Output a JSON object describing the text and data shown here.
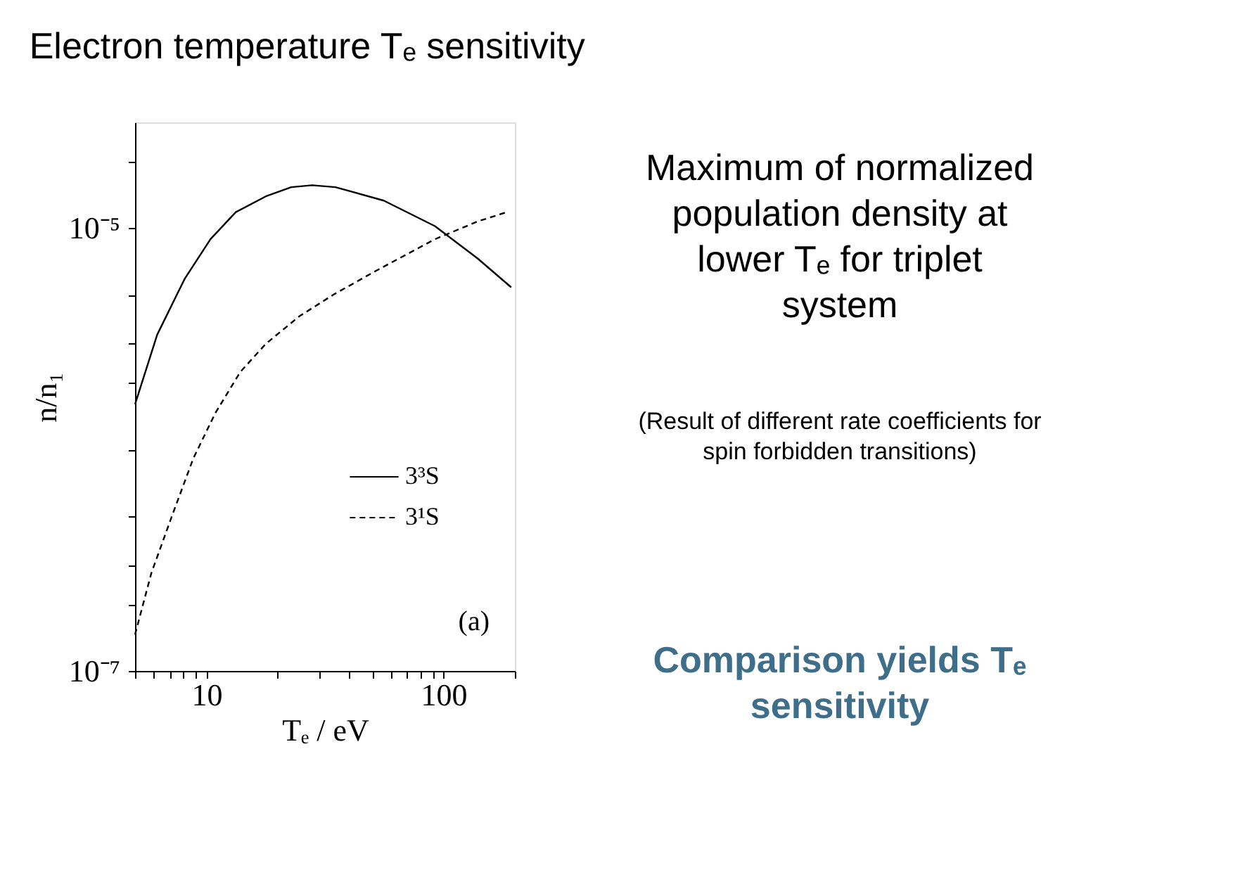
{
  "chart_data": {
    "type": "line",
    "title": "Electron temperature Tₑ sensitivity",
    "xlabel": "Tₑ / eV",
    "ylabel": "n/n₁",
    "log": "xy",
    "xlim": [
      5,
      200
    ],
    "ylim": [
      1e-07,
      3e-05
    ],
    "xticks": [
      {
        "value": 5,
        "label": null
      },
      {
        "value": 6,
        "label": null
      },
      {
        "value": 7,
        "label": null
      },
      {
        "value": 8,
        "label": null
      },
      {
        "value": 9,
        "label": null
      },
      {
        "value": 10,
        "label": "10"
      },
      {
        "value": 20,
        "label": null
      },
      {
        "value": 30,
        "label": null
      },
      {
        "value": 40,
        "label": null
      },
      {
        "value": 50,
        "label": null
      },
      {
        "value": 60,
        "label": null
      },
      {
        "value": 70,
        "label": null
      },
      {
        "value": 80,
        "label": null
      },
      {
        "value": 90,
        "label": null
      },
      {
        "value": 100,
        "label": "100"
      },
      {
        "value": 200,
        "label": null
      }
    ],
    "yticks": [
      {
        "value": 1e-07,
        "label": "10⁻⁷"
      },
      {
        "value": 2e-07,
        "label": null
      },
      {
        "value": 3e-07,
        "label": null
      },
      {
        "value": 5e-07,
        "label": null
      },
      {
        "value": 1e-06,
        "label": null
      },
      {
        "value": 2e-06,
        "label": null
      },
      {
        "value": 3e-06,
        "label": null
      },
      {
        "value": 5e-06,
        "label": null
      },
      {
        "value": 1e-05,
        "label": "10⁻⁵"
      },
      {
        "value": 2e-05,
        "label": null
      }
    ],
    "legend": "right",
    "grid": false,
    "series": [
      {
        "name": "3³S",
        "color": "#000000",
        "line_style": "solid",
        "x": [
          5,
          6.2,
          8.1,
          10.4,
          13.3,
          17.8,
          22.8,
          27.9,
          35,
          56,
          92,
          139,
          193
        ],
        "values": [
          1.6e-06,
          3.3e-06,
          5.9e-06,
          8.9e-06,
          1.18e-05,
          1.39e-05,
          1.53e-05,
          1.56e-05,
          1.53e-05,
          1.33e-05,
          1.02e-05,
          7.3e-06,
          5.4e-06
        ]
      },
      {
        "name": "3¹S",
        "color": "#000000",
        "line_style": "dashed",
        "x": [
          5,
          5.86,
          7.2,
          8.8,
          10.9,
          13.9,
          17.8,
          24.7,
          34.3,
          51.8,
          92,
          139,
          185
        ],
        "values": [
          1.46e-07,
          2.77e-07,
          5.1e-07,
          9.1e-07,
          1.46e-06,
          2.24e-06,
          3e-06,
          4e-06,
          5e-06,
          6.4e-06,
          8.9e-06,
          1.07e-05,
          1.18e-05
        ]
      }
    ],
    "annotations": [
      "(a)",
      "Maximum of normalized population density at lower Tₑ for triplet system",
      "(Result of different rate coefficients for spin forbidden transitions)",
      "Comparison yields Tₑ sensitivity"
    ]
  }
}
